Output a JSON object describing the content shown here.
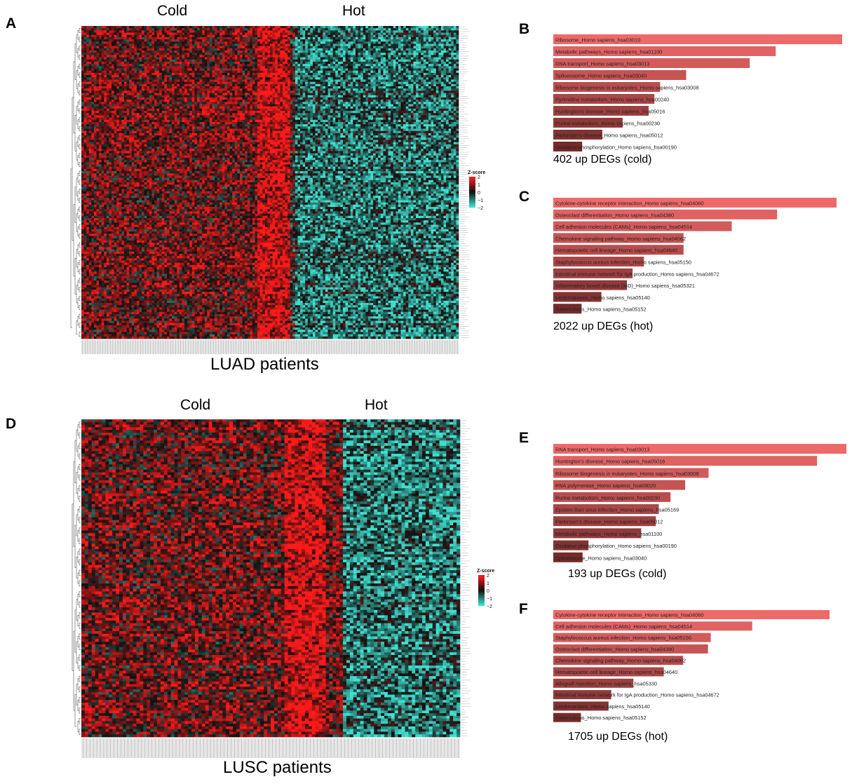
{
  "panels": {
    "A": {
      "letter": "A",
      "cold_label": "Cold",
      "hot_label": "Hot",
      "cohort_label": "LUAD patients",
      "legend": {
        "title": "Z-score",
        "ticks": [
          "2",
          "1",
          "0",
          "−1",
          "−2"
        ]
      }
    },
    "B": {
      "letter": "B"
    },
    "C": {
      "letter": "C"
    },
    "D": {
      "letter": "D",
      "cold_label": "Cold",
      "hot_label": "Hot",
      "cohort_label": "LUSC patients",
      "legend": {
        "title": "Z-score",
        "ticks": [
          "2",
          "1",
          "0",
          "−1",
          "−2"
        ]
      }
    },
    "E": {
      "letter": "E"
    },
    "F": {
      "letter": "F"
    }
  },
  "chart_data": [
    {
      "panel": "A",
      "type": "heatmap",
      "title": "LUAD patients",
      "column_groups": [
        "Cold",
        "Hot"
      ],
      "cold_fraction": 0.55,
      "rows": 140,
      "columns": 150,
      "value_range": [
        -2,
        2
      ],
      "color_scale": {
        "low": "#40e0d0",
        "mid": "#111111",
        "high": "#ff1a1a"
      },
      "legend_title": "Z-score"
    },
    {
      "panel": "B",
      "type": "bar",
      "orientation": "horizontal",
      "caption": "402 up DEGs (cold)",
      "categories": [
        "Ribosome_Homo sapiens_hsa03010",
        "Metabolic pathways_Homo sapiens_hsa01100",
        "RNA transport_Homo sapiens_hsa03013",
        "Spliceosome_Homo sapiens_hsa03040",
        "Ribosome biogenesis in eukaryotes_Homo sapiens_hsa03008",
        "Pyrimidine metabolism_Homo sapiens_hsa00240",
        "Huntington's disease_Homo sapiens_hsa05016",
        "Purine metabolism_Homo sapiens_hsa00230",
        "Parkinson's disease_Homo sapiens_hsa05012",
        "Oxidative phosphorylation_Homo sapiens_hsa00190"
      ],
      "values": [
        100,
        77,
        68,
        46,
        37,
        35,
        33,
        24,
        17,
        10
      ],
      "units": "relative score (bar length, % of max)"
    },
    {
      "panel": "C",
      "type": "bar",
      "orientation": "horizontal",
      "caption": "2022 up DEGs (hot)",
      "categories": [
        "Cytokine-cytokine receptor interaction_Homo sapiens_hsa04060",
        "Osteoclast differentiation_Homo sapiens_hsa04380",
        "Cell adhesion molecules (CAMs)_Homo sapiens_hsa04514",
        "Chemokine signaling pathway_Homo sapiens_hsa04062",
        "Hematopoietic cell lineage_Homo sapiens_hsa04640",
        "Staphylococcus aureus infection_Homo sapiens_hsa05150",
        "Intestinal immune network for IgA production_Homo sapiens_hsa04672",
        "Inflammatory bowel disease (IBD)_Homo sapiens_hsa05321",
        "Leishmaniasis_Homo sapiens_hsa05140",
        "Tuberculosis_Homo sapiens_hsa05152"
      ],
      "values": [
        100,
        79,
        63,
        46,
        46,
        32,
        28,
        26,
        17,
        10
      ],
      "units": "relative score (bar length, % of max)"
    },
    {
      "panel": "D",
      "type": "heatmap",
      "title": "LUSC patients",
      "column_groups": [
        "Cold",
        "Hot"
      ],
      "cold_fraction": 0.69,
      "rows": 120,
      "columns": 110,
      "value_range": [
        -2,
        2
      ],
      "color_scale": {
        "low": "#40e0d0",
        "mid": "#111111",
        "high": "#ff1a1a"
      },
      "legend_title": "Z-score"
    },
    {
      "panel": "E",
      "type": "bar",
      "orientation": "horizontal",
      "caption": "193 up DEGs (cold)",
      "categories": [
        "RNA transport_Homo sapiens_hsa03013",
        "Huntington's disease_Homo sapiens_hsa05016",
        "Ribosome biogenesis in eukaryotes_Homo sapiens_hsa03008",
        "RNA polymerase_Homo sapiens_hsa03020",
        "Purine metabolism_Homo sapiens_hsa00230",
        "Epstein-Barr virus infection_Homo sapiens_hsa05169",
        "Parkinson's disease_Homo sapiens_hsa05012",
        "Metabolic pathways_Homo sapiens_hsa01100",
        "Oxidative phosphorylation_Homo sapiens_hsa00190",
        "Spliceosome_Homo sapiens_hsa03040"
      ],
      "values": [
        100,
        90,
        53,
        45,
        40,
        36,
        35,
        30,
        12,
        10
      ],
      "units": "relative score (bar length, % of max)"
    },
    {
      "panel": "F",
      "type": "bar",
      "orientation": "horizontal",
      "caption": "1705 up DEGs (hot)",
      "categories": [
        "Cytokine-cytokine receptor interaction_Homo sapiens_hsa04060",
        "Cell adhesion molecules (CAMs)_Homo sapiens_hsa04514",
        "Staphylococcus aureus infection_Homo sapiens_hsa05150",
        "Osteoclast differentiation_Homo sapiens_hsa04380",
        "Chemokine signaling pathway_Homo sapiens_hsa04062",
        "Hematopoietic cell lineage_Homo sapiens_hsa04640",
        "Allograft rejection_Homo sapiens_hsa05330",
        "Intestinal immune network for IgA production_Homo sapiens_hsa04672",
        "Leishmaniasis_Homo sapiens_hsa05140",
        "Tuberculosis_Homo sapiens_hsa05152"
      ],
      "values": [
        100,
        72,
        57,
        56,
        47,
        40,
        29,
        21,
        20,
        10
      ],
      "units": "relative score (bar length, % of max)"
    }
  ]
}
